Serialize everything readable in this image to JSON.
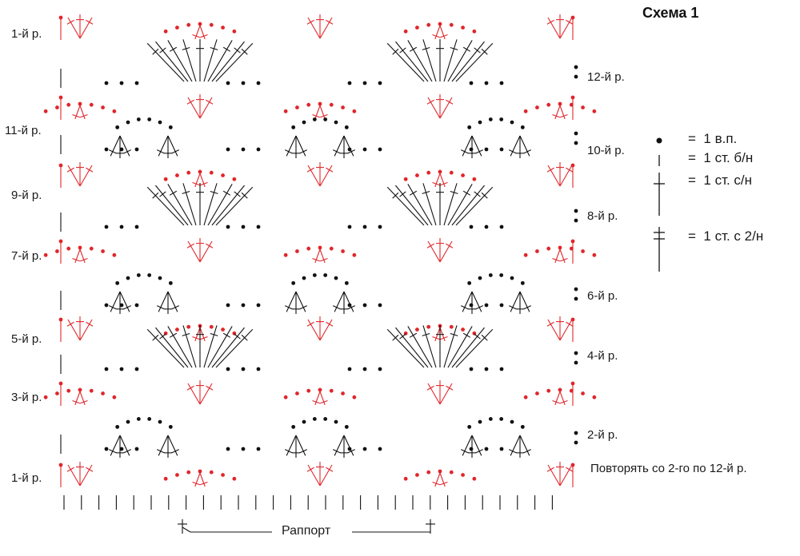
{
  "title": "Схема 1",
  "rows_left": [
    {
      "label": "1-й р.",
      "row": 1
    },
    {
      "label": "11-й р.",
      "row": 11
    },
    {
      "label": "9-й р.",
      "row": 9
    },
    {
      "label": "7-й р.",
      "row": 7
    },
    {
      "label": "5-й р.",
      "row": 5
    },
    {
      "label": "3-й р.",
      "row": 3
    },
    {
      "label": "1-й р.",
      "row": 1
    }
  ],
  "rows_right": [
    {
      "label": "12-й р.",
      "row": 12
    },
    {
      "label": "10-й р.",
      "row": 10
    },
    {
      "label": "8-й р.",
      "row": 8
    },
    {
      "label": "6-й р.",
      "row": 6
    },
    {
      "label": "4-й р.",
      "row": 4
    },
    {
      "label": "2-й р.",
      "row": 2
    }
  ],
  "legend": [
    {
      "symbol": "chain-dot",
      "eq": "=",
      "text": "1 в.п."
    },
    {
      "symbol": "single-crochet-tick",
      "eq": "=",
      "text": "1 ст. б/н"
    },
    {
      "symbol": "double-crochet-cross",
      "eq": "=",
      "text": "1 ст. с/н"
    },
    {
      "symbol": "treble-crochet-double-cross",
      "eq": "=",
      "text": "1 ст. с 2/н"
    }
  ],
  "repeat_note": "Повторять со 2-го по 12-й р.",
  "rapport_label": "Раппорт",
  "colors": {
    "odd_rows": "#e0262b",
    "even_rows": "#111111",
    "text": "#1a1a1a"
  }
}
